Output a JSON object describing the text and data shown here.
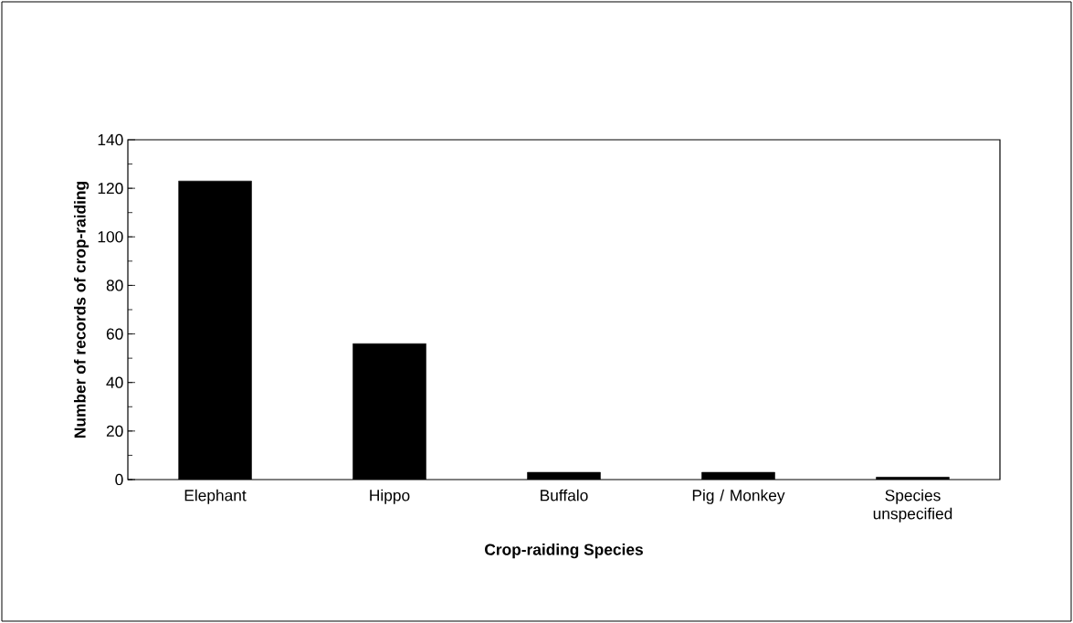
{
  "chart_data": {
    "type": "bar",
    "xlabel": "Crop-raiding Species",
    "ylabel": "Number of records of crop-raiding",
    "categories": [
      "Elephant",
      "Hippo",
      "Buffalo",
      "Pig / Monkey",
      "Species unspecified"
    ],
    "values": [
      123,
      56,
      3,
      3,
      1
    ],
    "color": "#000000",
    "ylim": [
      0,
      140
    ],
    "yticks": [
      0,
      20,
      40,
      60,
      80,
      100,
      120,
      140
    ],
    "grid": false
  }
}
